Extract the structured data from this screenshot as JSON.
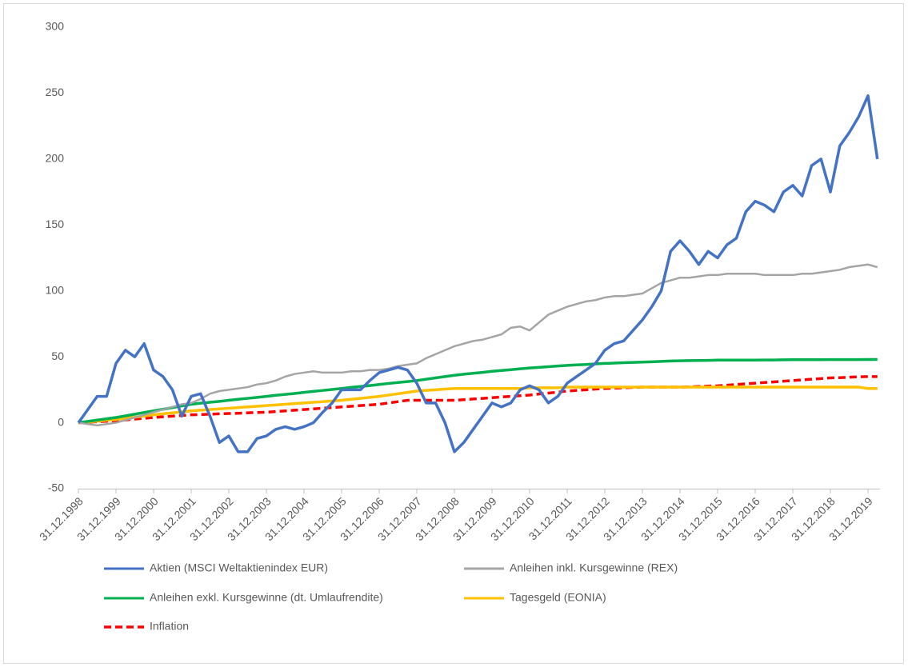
{
  "chart_data": {
    "type": "line",
    "categories": [
      "31.12.1998",
      null,
      null,
      null,
      "31.12.1999",
      null,
      null,
      null,
      "31.12.2000",
      null,
      null,
      null,
      "31.12.2001",
      null,
      null,
      null,
      "31.12.2002",
      null,
      null,
      null,
      "31.12.2003",
      null,
      null,
      null,
      "31.12.2004",
      null,
      null,
      null,
      "31.12.2005",
      null,
      null,
      null,
      "31.12.2006",
      null,
      null,
      null,
      "31.12.2007",
      null,
      null,
      null,
      "31.12.2008",
      null,
      null,
      null,
      "31.12.2009",
      null,
      null,
      null,
      "31.12.2010",
      null,
      null,
      null,
      "31.12.2011",
      null,
      null,
      null,
      "31.12.2012",
      null,
      null,
      null,
      "31.12.2013",
      null,
      null,
      null,
      "31.12.2014",
      null,
      null,
      null,
      "31.12.2015",
      null,
      null,
      null,
      "31.12.2016",
      null,
      null,
      null,
      "31.12.2017",
      null,
      null,
      null,
      "31.12.2018",
      null,
      null,
      null,
      "31.12.2019",
      null
    ],
    "ylim": [
      -50,
      300
    ],
    "yticks": [
      -50,
      0,
      50,
      100,
      150,
      200,
      250,
      300
    ],
    "grid": false,
    "series": [
      {
        "name": "Aktien (MSCI Weltaktienindex EUR)",
        "color": "#4472c4",
        "style": "solid",
        "values": [
          0,
          10,
          20,
          20,
          45,
          55,
          50,
          60,
          40,
          35,
          25,
          5,
          20,
          22,
          5,
          -15,
          -10,
          -22,
          -22,
          -12,
          -10,
          -5,
          -3,
          -5,
          -3,
          0,
          8,
          15,
          25,
          25,
          25,
          32,
          38,
          40,
          42,
          40,
          30,
          15,
          15,
          0,
          -22,
          -15,
          -5,
          5,
          15,
          12,
          15,
          25,
          28,
          25,
          15,
          20,
          30,
          35,
          40,
          45,
          55,
          60,
          62,
          70,
          78,
          88,
          100,
          130,
          138,
          130,
          120,
          130,
          125,
          135,
          140,
          160,
          168,
          165,
          160,
          175,
          180,
          172,
          195,
          200,
          175,
          210,
          220,
          232,
          248,
          200
        ]
      },
      {
        "name": "Anleihen inkl. Kursgewinne (REX)",
        "color": "#a5a5a5",
        "style": "solid",
        "values": [
          0,
          -1,
          -2,
          -1,
          0,
          2,
          4,
          6,
          8,
          10,
          12,
          14,
          15,
          18,
          22,
          24,
          25,
          26,
          27,
          29,
          30,
          32,
          35,
          37,
          38,
          39,
          38,
          38,
          38,
          39,
          39,
          40,
          40,
          41,
          43,
          44,
          45,
          49,
          52,
          55,
          58,
          60,
          62,
          63,
          65,
          67,
          72,
          73,
          70,
          76,
          82,
          85,
          88,
          90,
          92,
          93,
          95,
          96,
          96,
          97,
          98,
          102,
          106,
          108,
          110,
          110,
          111,
          112,
          112,
          113,
          113,
          113,
          113,
          112,
          112,
          112,
          112,
          113,
          113,
          114,
          115,
          116,
          118,
          119,
          120,
          118
        ]
      },
      {
        "name": "Anleihen exkl. Kursgewinne (dt. Umlaufrendite)",
        "color": "#00b050",
        "style": "solid",
        "values": [
          0,
          1,
          2,
          3,
          4,
          5.2,
          6.5,
          7.8,
          9,
          10.2,
          11.5,
          12.8,
          14,
          14.8,
          15.5,
          16.2,
          17,
          17.8,
          18.5,
          19.2,
          20,
          20.8,
          21.5,
          22.2,
          23,
          23.8,
          24.5,
          25.2,
          26,
          26.8,
          27.5,
          28.2,
          29,
          29.8,
          30.5,
          31.2,
          32,
          33,
          34,
          35,
          36,
          36.8,
          37.5,
          38.2,
          39,
          39.6,
          40.2,
          40.9,
          41.5,
          42,
          42.5,
          43,
          43.5,
          43.9,
          44.2,
          44.6,
          45,
          45.2,
          45.5,
          45.8,
          46,
          46.2,
          46.5,
          46.8,
          47,
          47.1,
          47.2,
          47.3,
          47.5,
          47.5,
          47.5,
          47.5,
          47.5,
          47.6,
          47.6,
          47.7,
          47.8,
          47.8,
          47.8,
          47.8,
          47.9,
          47.9,
          47.9,
          47.9,
          48,
          48
        ]
      },
      {
        "name": "Tagesgeld (EONIA)",
        "color": "#ffc000",
        "style": "solid",
        "values": [
          0,
          0.6,
          1.2,
          1.9,
          2.5,
          3.4,
          4.2,
          5.1,
          6,
          6.8,
          7.5,
          8.2,
          9,
          9.5,
          10,
          10.5,
          11,
          11.5,
          12,
          12.5,
          13,
          13.5,
          14,
          14.5,
          15,
          15.5,
          16,
          16.5,
          17,
          17.8,
          18.5,
          19.2,
          20,
          21,
          22,
          23,
          24,
          24.5,
          25,
          25.5,
          26,
          26,
          26,
          26,
          26,
          26,
          26,
          26,
          26.5,
          26.5,
          26.5,
          26.5,
          27,
          27,
          27,
          27,
          27,
          27,
          27,
          27,
          27,
          27,
          27,
          27,
          27,
          27,
          27,
          27,
          27,
          27,
          27,
          27,
          27,
          27,
          27,
          27,
          27,
          27,
          27,
          27,
          27,
          27,
          27,
          27,
          26,
          26
        ]
      },
      {
        "name": "Inflation",
        "color": "#ff0000",
        "style": "dashed",
        "values": [
          0,
          0.4,
          0.8,
          1.1,
          1.5,
          2.1,
          2.8,
          3.4,
          4,
          4.5,
          5,
          5.5,
          6,
          6.2,
          6.5,
          6.8,
          7,
          7.2,
          7.5,
          7.8,
          8,
          8.5,
          9,
          9.5,
          10,
          10.5,
          11,
          11.5,
          12,
          12.5,
          13,
          13.5,
          14,
          15,
          16,
          17,
          17,
          17,
          17,
          17,
          17,
          17.5,
          18,
          18.5,
          19,
          19.5,
          20,
          20.5,
          21,
          21.8,
          22.5,
          23.2,
          24,
          24.5,
          25,
          25.5,
          26,
          26.2,
          26.5,
          26.8,
          27,
          27,
          27,
          27,
          27,
          27.2,
          27.5,
          27.8,
          28,
          28.5,
          29,
          29.5,
          30,
          30.5,
          31,
          31.5,
          32,
          32.5,
          33,
          33.5,
          34,
          34.2,
          34.5,
          34.8,
          35,
          35
        ]
      }
    ]
  }
}
